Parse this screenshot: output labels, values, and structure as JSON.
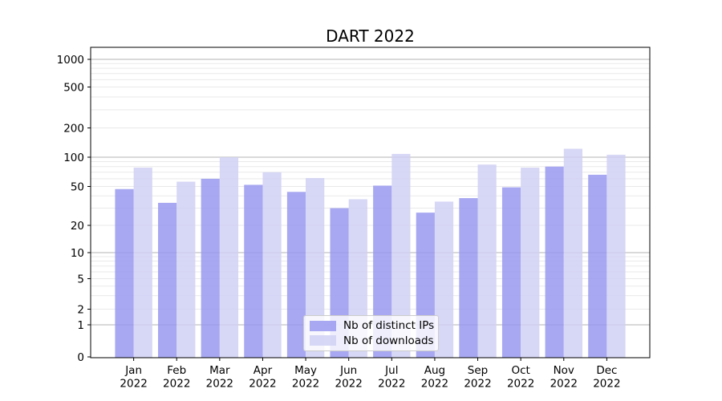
{
  "chart_data": {
    "type": "bar",
    "title": "DART 2022",
    "categories": [
      "Jan",
      "Feb",
      "Mar",
      "Apr",
      "May",
      "Jun",
      "Jul",
      "Aug",
      "Sep",
      "Oct",
      "Nov",
      "Dec"
    ],
    "year_label": "2022",
    "series": [
      {
        "name": "Nb of distinct IPs",
        "color": "#9999f0",
        "opacity": 0.85,
        "values": [
          47,
          34,
          60,
          52,
          44,
          30,
          51,
          27,
          38,
          49,
          80,
          66
        ]
      },
      {
        "name": "Nb of downloads",
        "color": "#d0d0f5",
        "opacity": 0.85,
        "values": [
          78,
          56,
          100,
          70,
          61,
          37,
          108,
          35,
          84,
          78,
          122,
          106
        ]
      }
    ],
    "y_axis": {
      "scale": "symlog",
      "ticks": [
        0,
        1,
        2,
        5,
        10,
        20,
        50,
        100,
        200,
        500,
        1000
      ],
      "ylim": [
        0,
        1300
      ]
    },
    "x_axis": {
      "label_lines": 2
    },
    "legend": {
      "position": "bottom-center"
    },
    "grid": "on"
  }
}
